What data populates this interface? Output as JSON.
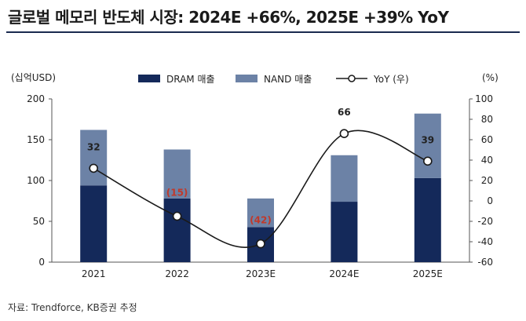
{
  "title": "글로벌 메모리 반도체 시장: 2024E +66%, 2025E +39% YoY",
  "source": "자료: Trendforce, KB증권 추정",
  "chart_data": {
    "type": "bar",
    "categories": [
      "2021",
      "2022",
      "2023E",
      "2024E",
      "2025E"
    ],
    "series": [
      {
        "name": "DRAM 매출",
        "kind": "stacked-bar",
        "axis": "left",
        "color": "#14295a",
        "values": [
          94,
          78,
          43,
          74,
          103
        ]
      },
      {
        "name": "NAND 매출",
        "kind": "stacked-bar",
        "axis": "left",
        "color": "#6c82a6",
        "values": [
          68,
          60,
          35,
          57,
          79
        ]
      },
      {
        "name": "YoY (우)",
        "kind": "line",
        "axis": "right",
        "color": "#1a1a1a",
        "values": [
          32,
          -15,
          -42,
          66,
          39
        ]
      }
    ],
    "yoy_labels": [
      "32",
      "(15)",
      "(42)",
      "66",
      "39"
    ],
    "y_left": {
      "label": "(십억USD)",
      "min": 0,
      "max": 200,
      "ticks": [
        0,
        50,
        100,
        150,
        200
      ]
    },
    "y_right": {
      "label": "(%)",
      "min": -60,
      "max": 100,
      "ticks": [
        -60,
        -40,
        -20,
        0,
        20,
        40,
        60,
        80,
        100
      ]
    },
    "legend_position": "top"
  }
}
